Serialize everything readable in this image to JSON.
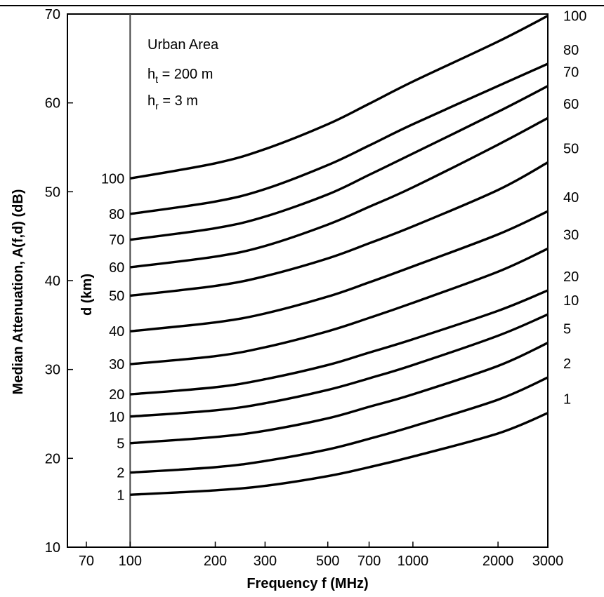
{
  "chart_data": {
    "type": "line",
    "title": "",
    "xlabel": "Frequency  f  (MHz)",
    "ylabel": "Median Attenuation, A(f,d) (dB)",
    "x_scale": "log",
    "xlim": [
      60,
      3000
    ],
    "ylim": [
      10,
      70
    ],
    "x_ticks": [
      70,
      100,
      200,
      300,
      500,
      700,
      1000,
      2000,
      3000
    ],
    "x_tick_labels": [
      "70",
      "100",
      "200",
      "300",
      "500",
      "700",
      "1000",
      "2000",
      "3000"
    ],
    "y_ticks": [
      10,
      20,
      30,
      40,
      50,
      60,
      70
    ],
    "y_tick_labels": [
      "10",
      "20",
      "30",
      "40",
      "50",
      "60",
      "70"
    ],
    "reference_line_x": 100,
    "curve_axis_label": "d (km)",
    "annotations": [
      "Urban Area",
      "h",
      "t",
      " = 200 m",
      "h",
      "r",
      " = 3 m"
    ],
    "series": [
      {
        "name": "1",
        "points": [
          [
            100,
            15.9
          ],
          [
            200,
            16.4
          ],
          [
            300,
            16.9
          ],
          [
            500,
            18.0
          ],
          [
            700,
            19.0
          ],
          [
            1000,
            20.2
          ],
          [
            2000,
            22.8
          ],
          [
            3000,
            25.1
          ]
        ]
      },
      {
        "name": "2",
        "points": [
          [
            100,
            18.4
          ],
          [
            200,
            19.0
          ],
          [
            300,
            19.7
          ],
          [
            500,
            21.0
          ],
          [
            700,
            22.2
          ],
          [
            1000,
            23.6
          ],
          [
            2000,
            26.6
          ],
          [
            3000,
            29.1
          ]
        ]
      },
      {
        "name": "5",
        "points": [
          [
            100,
            21.7
          ],
          [
            200,
            22.4
          ],
          [
            300,
            23.1
          ],
          [
            500,
            24.5
          ],
          [
            700,
            25.8
          ],
          [
            1000,
            27.2
          ],
          [
            2000,
            30.4
          ],
          [
            3000,
            33.0
          ]
        ]
      },
      {
        "name": "10",
        "points": [
          [
            100,
            24.7
          ],
          [
            200,
            25.4
          ],
          [
            300,
            26.2
          ],
          [
            500,
            27.7
          ],
          [
            700,
            29.0
          ],
          [
            1000,
            30.5
          ],
          [
            2000,
            33.8
          ],
          [
            3000,
            36.2
          ]
        ]
      },
      {
        "name": "20",
        "points": [
          [
            100,
            27.2
          ],
          [
            200,
            28.0
          ],
          [
            300,
            28.9
          ],
          [
            500,
            30.5
          ],
          [
            700,
            31.9
          ],
          [
            1000,
            33.4
          ],
          [
            2000,
            36.6
          ],
          [
            3000,
            38.9
          ]
        ]
      },
      {
        "name": "30",
        "points": [
          [
            100,
            30.6
          ],
          [
            200,
            31.5
          ],
          [
            300,
            32.5
          ],
          [
            500,
            34.3
          ],
          [
            700,
            35.8
          ],
          [
            1000,
            37.5
          ],
          [
            2000,
            41.0
          ],
          [
            3000,
            43.6
          ]
        ]
      },
      {
        "name": "40",
        "points": [
          [
            100,
            34.3
          ],
          [
            200,
            35.3
          ],
          [
            300,
            36.3
          ],
          [
            500,
            38.2
          ],
          [
            700,
            39.8
          ],
          [
            1000,
            41.6
          ],
          [
            2000,
            45.2
          ],
          [
            3000,
            47.8
          ]
        ]
      },
      {
        "name": "50",
        "points": [
          [
            100,
            38.3
          ],
          [
            200,
            39.4
          ],
          [
            300,
            40.5
          ],
          [
            500,
            42.5
          ],
          [
            700,
            44.2
          ],
          [
            1000,
            46.1
          ],
          [
            2000,
            50.2
          ],
          [
            3000,
            53.3
          ]
        ]
      },
      {
        "name": "60",
        "points": [
          [
            100,
            41.5
          ],
          [
            200,
            42.7
          ],
          [
            300,
            43.9
          ],
          [
            500,
            46.3
          ],
          [
            700,
            48.3
          ],
          [
            1000,
            50.5
          ],
          [
            2000,
            55.3
          ],
          [
            3000,
            58.3
          ]
        ]
      },
      {
        "name": "70",
        "points": [
          [
            100,
            44.6
          ],
          [
            200,
            45.9
          ],
          [
            300,
            47.2
          ],
          [
            500,
            49.7
          ],
          [
            700,
            51.9
          ],
          [
            1000,
            54.3
          ],
          [
            2000,
            59.0
          ],
          [
            3000,
            61.9
          ]
        ]
      },
      {
        "name": "80",
        "points": [
          [
            100,
            47.5
          ],
          [
            200,
            48.9
          ],
          [
            300,
            50.3
          ],
          [
            500,
            53.0
          ],
          [
            700,
            55.2
          ],
          [
            1000,
            57.6
          ],
          [
            2000,
            61.9
          ],
          [
            3000,
            64.4
          ]
        ]
      },
      {
        "name": "100",
        "points": [
          [
            100,
            51.5
          ],
          [
            200,
            53.2
          ],
          [
            300,
            54.8
          ],
          [
            500,
            57.6
          ],
          [
            700,
            59.9
          ],
          [
            1000,
            62.4
          ],
          [
            2000,
            66.9
          ],
          [
            3000,
            69.8
          ]
        ]
      }
    ]
  }
}
